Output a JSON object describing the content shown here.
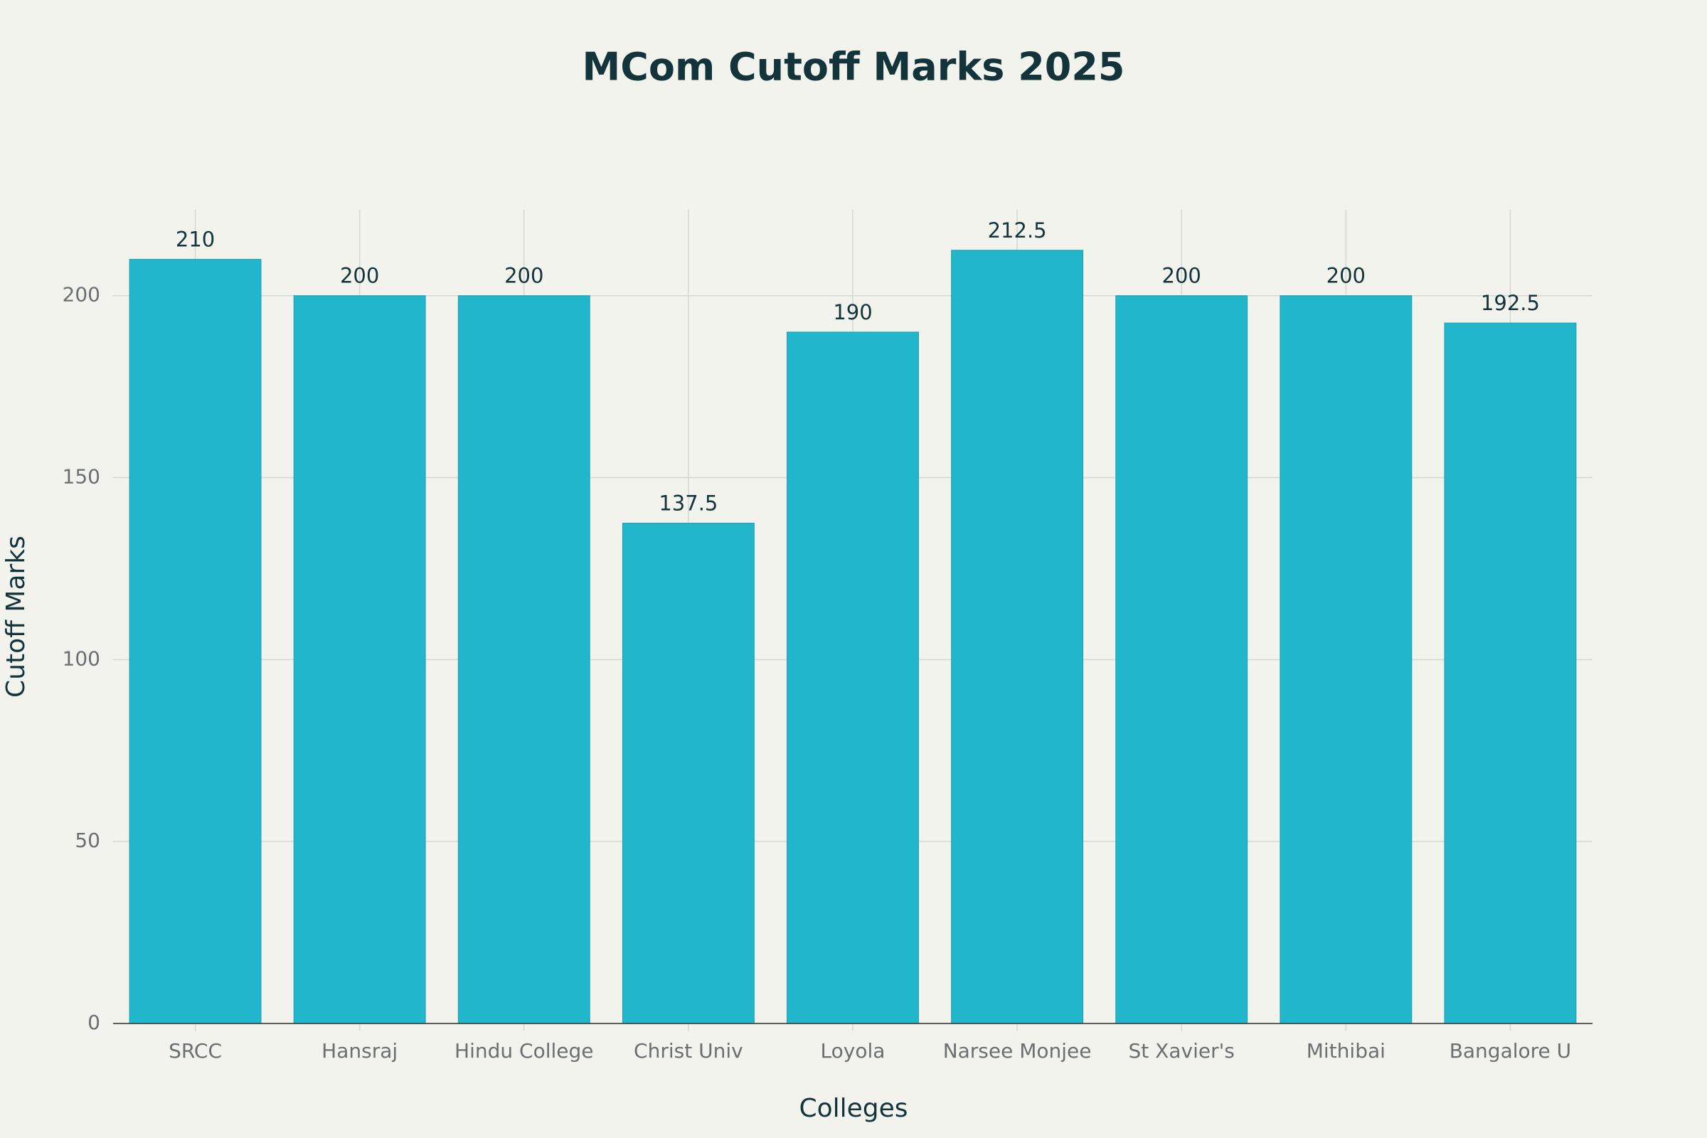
{
  "chart_data": {
    "type": "bar",
    "title": "MCom Cutoff Marks 2025",
    "x_label": "Colleges",
    "y_label": "Cutoff Marks",
    "categories": [
      "SRCC",
      "Hansraj",
      "Hindu College",
      "Christ Univ",
      "Loyola",
      "Narsee Monjee",
      "St Xavier's",
      "Mithibai",
      "Bangalore U"
    ],
    "values": [
      210,
      200,
      200,
      137.5,
      190,
      212.5,
      200,
      200,
      192.5
    ],
    "color": "#21b6cb",
    "ylim": [
      0,
      223.6
    ],
    "yticks": [
      0,
      50,
      100,
      150,
      200
    ],
    "grid": true
  }
}
